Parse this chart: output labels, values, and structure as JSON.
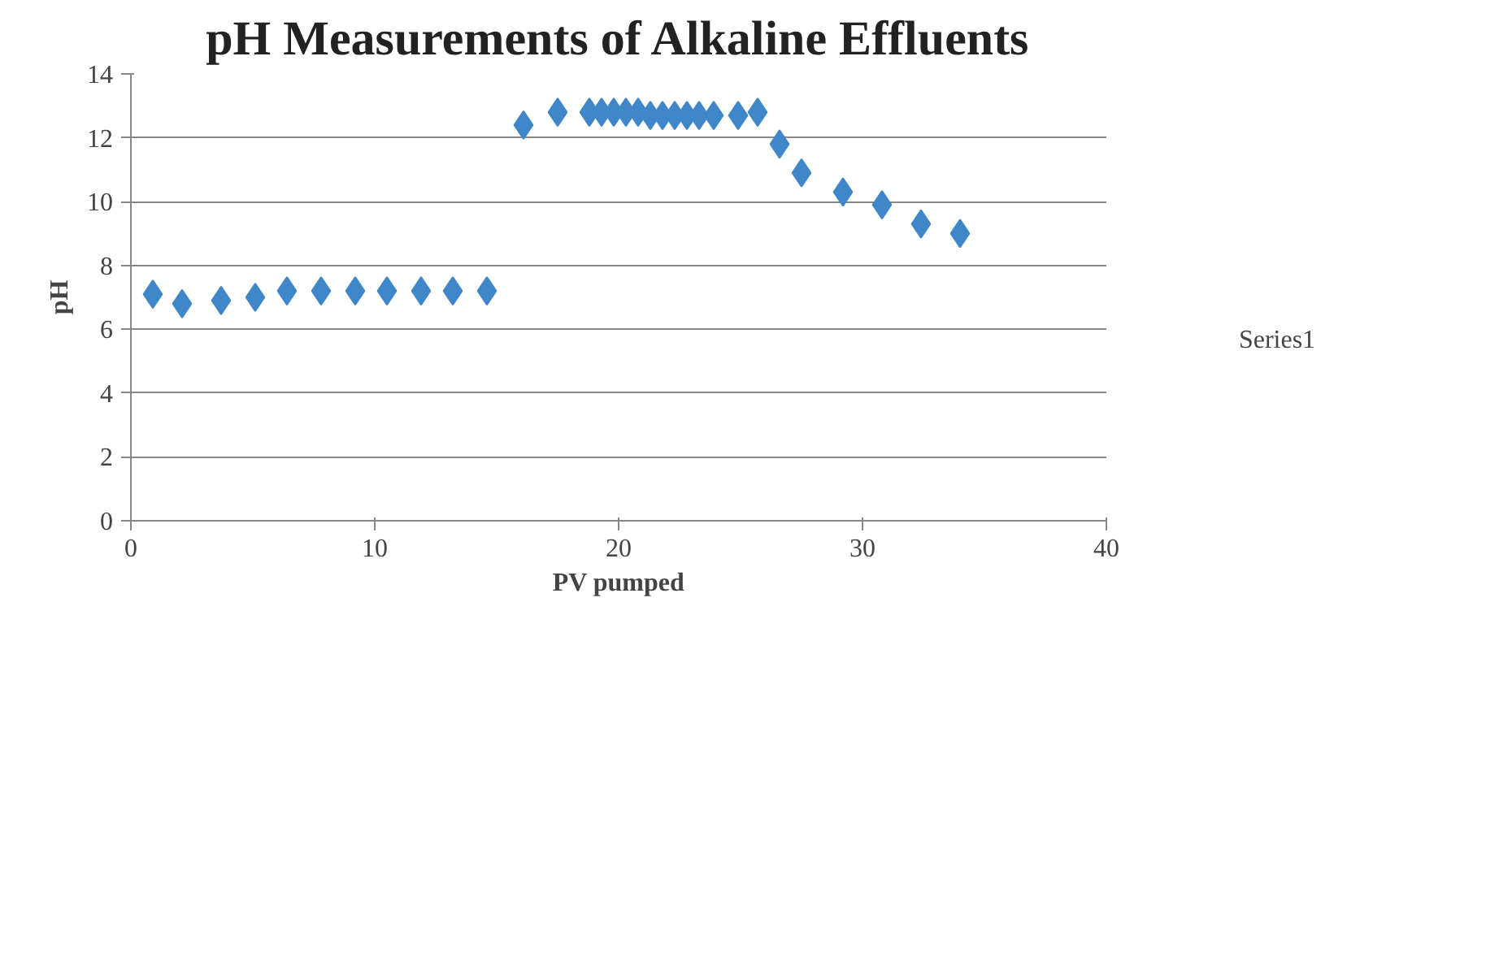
{
  "chart_data": {
    "type": "scatter",
    "title": "pH Measurements of Alkaline Effluents",
    "xlabel": "PV pumped",
    "ylabel": "pH",
    "x": [
      0.9,
      2.1,
      3.7,
      5.1,
      6.4,
      7.8,
      9.2,
      10.5,
      11.9,
      13.2,
      14.6,
      16.1,
      17.5,
      18.8,
      19.3,
      19.8,
      20.3,
      20.8,
      21.3,
      21.8,
      22.3,
      22.8,
      23.3,
      23.9,
      24.9,
      25.7,
      26.6,
      27.5,
      29.2,
      30.8,
      32.4,
      34.0
    ],
    "series": [
      {
        "name": "Series1",
        "color": "#3f87c8",
        "values": [
          7.1,
          6.8,
          6.9,
          7.0,
          7.2,
          7.2,
          7.2,
          7.2,
          7.2,
          7.2,
          7.2,
          12.4,
          12.8,
          12.8,
          12.8,
          12.8,
          12.8,
          12.8,
          12.7,
          12.7,
          12.7,
          12.7,
          12.7,
          12.7,
          12.7,
          12.8,
          11.8,
          10.9,
          10.3,
          9.9,
          9.3,
          9.0
        ]
      }
    ],
    "xlim": [
      0,
      40
    ],
    "ylim": [
      0,
      14
    ],
    "xticks": [
      0,
      10,
      20,
      30,
      40
    ],
    "yticks": [
      0,
      2,
      4,
      6,
      8,
      10,
      12,
      14
    ],
    "grid": "y",
    "legend": "right",
    "marker": "diamond"
  }
}
